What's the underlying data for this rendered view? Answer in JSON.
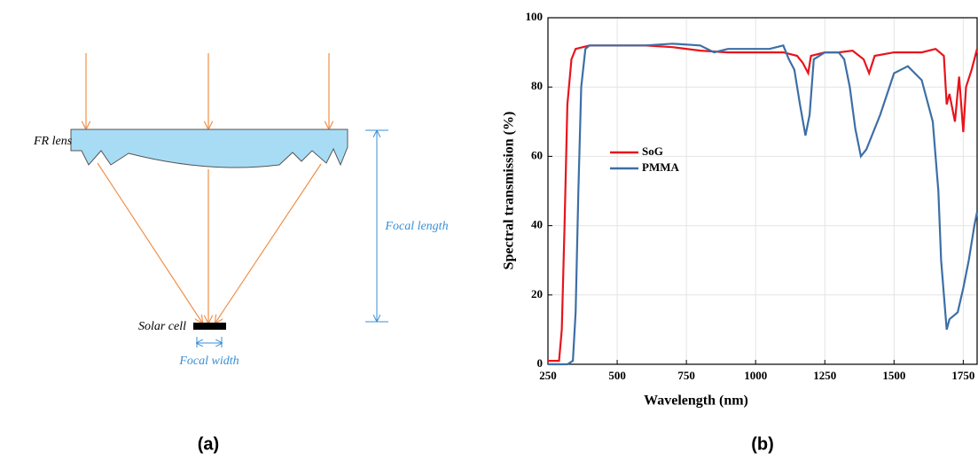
{
  "diagram": {
    "lens_label": "FR lens",
    "cell_label": "Solar cell",
    "length_label": "Focal length",
    "width_label": "Focal width"
  },
  "panel_labels": [
    "(a)",
    "(b)"
  ],
  "chart_data": {
    "type": "line",
    "x_label": "Wavelength (nm)",
    "y_label": "Spectral transmission (%)",
    "xlim": [
      250,
      1800
    ],
    "ylim": [
      0,
      100
    ],
    "xticks": [
      250,
      500,
      750,
      1000,
      1250,
      1500,
      1750
    ],
    "yticks": [
      0,
      20,
      40,
      60,
      80,
      100
    ],
    "grid": true,
    "legend": "left",
    "series": [
      {
        "name": "SoG",
        "color": "#e8141c",
        "x": [
          250,
          290,
          300,
          310,
          320,
          335,
          350,
          400,
          500,
          600,
          700,
          800,
          900,
          1000,
          1100,
          1150,
          1170,
          1190,
          1200,
          1250,
          1300,
          1350,
          1390,
          1410,
          1430,
          1500,
          1600,
          1650,
          1680,
          1690,
          1700,
          1720,
          1735,
          1750,
          1760,
          1780,
          1800
        ],
        "values": [
          1,
          1,
          10,
          40,
          75,
          88,
          91,
          92,
          92,
          92,
          91.5,
          90.5,
          90,
          90,
          90,
          89,
          87,
          84,
          89,
          90,
          90,
          90.5,
          88,
          84,
          89,
          90,
          90,
          91,
          89,
          75,
          78,
          70,
          83,
          67,
          80,
          85,
          91
        ]
      },
      {
        "name": "PMMA",
        "color": "#3d6fa6",
        "x": [
          250,
          320,
          340,
          350,
          360,
          370,
          385,
          400,
          500,
          600,
          700,
          800,
          850,
          900,
          1000,
          1050,
          1100,
          1120,
          1140,
          1160,
          1180,
          1195,
          1210,
          1250,
          1300,
          1320,
          1340,
          1360,
          1380,
          1400,
          1450,
          1500,
          1550,
          1600,
          1640,
          1660,
          1670,
          1690,
          1700,
          1730,
          1750,
          1770,
          1790,
          1800
        ],
        "values": [
          0,
          0,
          1,
          15,
          50,
          80,
          91,
          92,
          92,
          92,
          92.5,
          92,
          90,
          91,
          91,
          91,
          92,
          88,
          85,
          75,
          66,
          72,
          88,
          90,
          90,
          88,
          80,
          68,
          60,
          62,
          72,
          84,
          86,
          82,
          70,
          50,
          30,
          10,
          13,
          15,
          22,
          30,
          40,
          44
        ]
      }
    ]
  }
}
